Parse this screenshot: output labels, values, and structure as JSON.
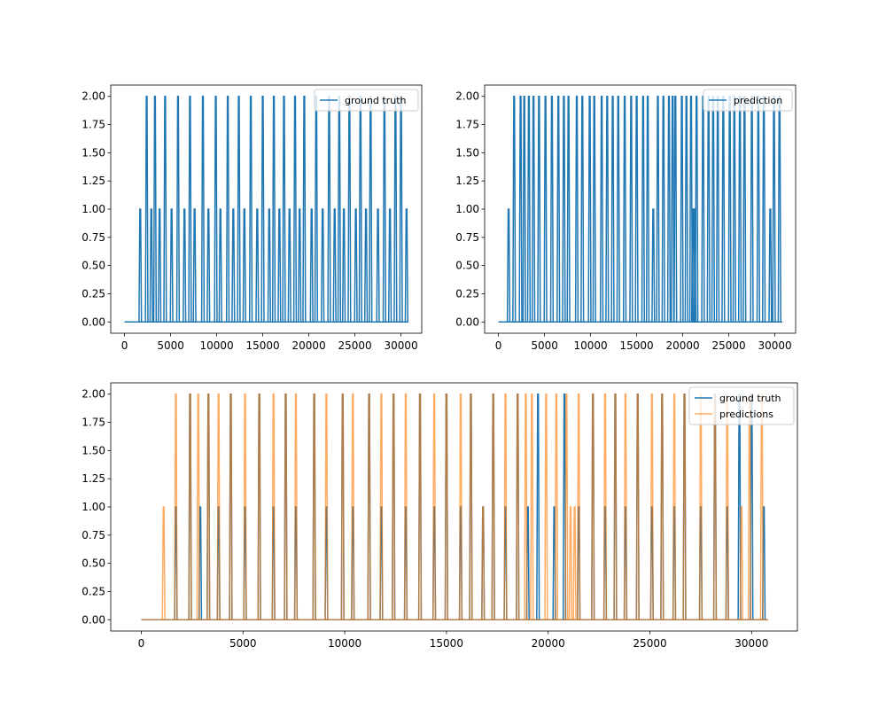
{
  "chart_data": [
    {
      "type": "line",
      "title": "",
      "xlabel": "",
      "ylabel": "",
      "xlim": [
        -1500,
        32250
      ],
      "ylim": [
        -0.1,
        2.1
      ],
      "xticks": [
        0,
        5000,
        10000,
        15000,
        20000,
        25000,
        30000
      ],
      "yticks": [
        0.0,
        0.25,
        0.5,
        0.75,
        1.0,
        1.25,
        1.5,
        1.75,
        2.0
      ],
      "grid": false,
      "legend": "top-right",
      "x_range": [
        0,
        30800
      ],
      "series": [
        {
          "name": "ground truth",
          "color": "#1f77b4",
          "opacity": 1,
          "spikes": [
            [
              1700,
              1
            ],
            [
              2400,
              2
            ],
            [
              2900,
              1
            ],
            [
              3300,
              2
            ],
            [
              3800,
              1
            ],
            [
              4400,
              2
            ],
            [
              5100,
              1
            ],
            [
              5800,
              2
            ],
            [
              6500,
              1
            ],
            [
              7100,
              2
            ],
            [
              7600,
              1
            ],
            [
              8500,
              2
            ],
            [
              9100,
              1
            ],
            [
              9900,
              2
            ],
            [
              10400,
              1
            ],
            [
              11200,
              2
            ],
            [
              11800,
              1
            ],
            [
              12400,
              2
            ],
            [
              13000,
              1
            ],
            [
              13700,
              2
            ],
            [
              14400,
              1
            ],
            [
              15000,
              2
            ],
            [
              15700,
              1
            ],
            [
              16200,
              2
            ],
            [
              16800,
              1
            ],
            [
              17300,
              2
            ],
            [
              17900,
              1
            ],
            [
              18500,
              2
            ],
            [
              19000,
              1
            ],
            [
              19500,
              2
            ],
            [
              20300,
              1
            ],
            [
              20800,
              2
            ],
            [
              21500,
              1
            ],
            [
              22200,
              2
            ],
            [
              22800,
              1
            ],
            [
              23300,
              2
            ],
            [
              23800,
              1
            ],
            [
              24400,
              2
            ],
            [
              25100,
              1
            ],
            [
              25600,
              2
            ],
            [
              26200,
              1
            ],
            [
              26700,
              2
            ],
            [
              27500,
              1
            ],
            [
              28200,
              2
            ],
            [
              28800,
              1
            ],
            [
              29400,
              2
            ],
            [
              30000,
              2
            ],
            [
              30600,
              1
            ]
          ]
        }
      ]
    },
    {
      "type": "line",
      "title": "",
      "xlabel": "",
      "ylabel": "",
      "xlim": [
        -1500,
        32250
      ],
      "ylim": [
        -0.1,
        2.1
      ],
      "xticks": [
        0,
        5000,
        10000,
        15000,
        20000,
        25000,
        30000
      ],
      "yticks": [
        0.0,
        0.25,
        0.5,
        0.75,
        1.0,
        1.25,
        1.5,
        1.75,
        2.0
      ],
      "grid": false,
      "legend": "top-right",
      "x_range": [
        0,
        30800
      ],
      "series": [
        {
          "name": "prediction",
          "color": "#1f77b4",
          "opacity": 1,
          "spikes": [
            [
              1100,
              1
            ],
            [
              1700,
              2
            ],
            [
              2400,
              2
            ],
            [
              2800,
              2
            ],
            [
              3300,
              2
            ],
            [
              3800,
              2
            ],
            [
              4400,
              2
            ],
            [
              5100,
              2
            ],
            [
              5800,
              2
            ],
            [
              6500,
              2
            ],
            [
              7100,
              2
            ],
            [
              7600,
              2
            ],
            [
              8500,
              2
            ],
            [
              9100,
              2
            ],
            [
              9900,
              2
            ],
            [
              10400,
              2
            ],
            [
              11200,
              2
            ],
            [
              11800,
              2
            ],
            [
              12400,
              2
            ],
            [
              13000,
              2
            ],
            [
              13700,
              2
            ],
            [
              14400,
              2
            ],
            [
              15000,
              2
            ],
            [
              15700,
              2
            ],
            [
              16200,
              2
            ],
            [
              16800,
              1
            ],
            [
              17300,
              2
            ],
            [
              17900,
              2
            ],
            [
              18500,
              2
            ],
            [
              18900,
              2
            ],
            [
              19200,
              2
            ],
            [
              19900,
              2
            ],
            [
              20400,
              2
            ],
            [
              20900,
              2
            ],
            [
              21100,
              1
            ],
            [
              21300,
              1
            ],
            [
              21500,
              2
            ],
            [
              22200,
              2
            ],
            [
              22800,
              2
            ],
            [
              23300,
              2
            ],
            [
              23800,
              2
            ],
            [
              24400,
              2
            ],
            [
              25100,
              2
            ],
            [
              25600,
              2
            ],
            [
              26200,
              2
            ],
            [
              26700,
              2
            ],
            [
              27500,
              2
            ],
            [
              28200,
              2
            ],
            [
              28800,
              2
            ],
            [
              29500,
              1
            ],
            [
              29900,
              2
            ],
            [
              30500,
              2
            ]
          ]
        }
      ]
    },
    {
      "type": "line",
      "title": "",
      "xlabel": "",
      "ylabel": "",
      "xlim": [
        -1500,
        32250
      ],
      "ylim": [
        -0.1,
        2.1
      ],
      "xticks": [
        0,
        5000,
        10000,
        15000,
        20000,
        25000,
        30000
      ],
      "yticks": [
        0.0,
        0.25,
        0.5,
        0.75,
        1.0,
        1.25,
        1.5,
        1.75,
        2.0
      ],
      "grid": false,
      "legend": "top-right",
      "x_range": [
        0,
        30800
      ],
      "series": [
        {
          "name": "ground truth",
          "color": "#1f77b4",
          "opacity": 1,
          "spikes": [
            [
              1700,
              1
            ],
            [
              2400,
              2
            ],
            [
              2900,
              1
            ],
            [
              3300,
              2
            ],
            [
              3800,
              1
            ],
            [
              4400,
              2
            ],
            [
              5100,
              1
            ],
            [
              5800,
              2
            ],
            [
              6500,
              1
            ],
            [
              7100,
              2
            ],
            [
              7600,
              1
            ],
            [
              8500,
              2
            ],
            [
              9100,
              1
            ],
            [
              9900,
              2
            ],
            [
              10400,
              1
            ],
            [
              11200,
              2
            ],
            [
              11800,
              1
            ],
            [
              12400,
              2
            ],
            [
              13000,
              1
            ],
            [
              13700,
              2
            ],
            [
              14400,
              1
            ],
            [
              15000,
              2
            ],
            [
              15700,
              1
            ],
            [
              16200,
              2
            ],
            [
              16800,
              1
            ],
            [
              17300,
              2
            ],
            [
              17900,
              1
            ],
            [
              18500,
              2
            ],
            [
              19000,
              1
            ],
            [
              19500,
              2
            ],
            [
              20300,
              1
            ],
            [
              20800,
              2
            ],
            [
              21500,
              1
            ],
            [
              22200,
              2
            ],
            [
              22800,
              1
            ],
            [
              23300,
              2
            ],
            [
              23800,
              1
            ],
            [
              24400,
              2
            ],
            [
              25100,
              1
            ],
            [
              25600,
              2
            ],
            [
              26200,
              1
            ],
            [
              26700,
              2
            ],
            [
              27500,
              1
            ],
            [
              28200,
              2
            ],
            [
              28800,
              1
            ],
            [
              29400,
              2
            ],
            [
              30000,
              2
            ],
            [
              30600,
              1
            ]
          ]
        },
        {
          "name": "predictions",
          "color": "#ff7f0e",
          "opacity": 0.65,
          "spikes": [
            [
              1100,
              1
            ],
            [
              1700,
              2
            ],
            [
              2400,
              2
            ],
            [
              2800,
              2
            ],
            [
              3300,
              2
            ],
            [
              3800,
              2
            ],
            [
              4400,
              2
            ],
            [
              5100,
              2
            ],
            [
              5800,
              2
            ],
            [
              6500,
              2
            ],
            [
              7100,
              2
            ],
            [
              7600,
              2
            ],
            [
              8500,
              2
            ],
            [
              9100,
              2
            ],
            [
              9900,
              2
            ],
            [
              10400,
              2
            ],
            [
              11200,
              2
            ],
            [
              11800,
              2
            ],
            [
              12400,
              2
            ],
            [
              13000,
              2
            ],
            [
              13700,
              2
            ],
            [
              14400,
              2
            ],
            [
              15000,
              2
            ],
            [
              15700,
              2
            ],
            [
              16200,
              2
            ],
            [
              16800,
              1
            ],
            [
              17300,
              2
            ],
            [
              17900,
              2
            ],
            [
              18500,
              2
            ],
            [
              18900,
              2
            ],
            [
              19200,
              2
            ],
            [
              19900,
              2
            ],
            [
              20400,
              2
            ],
            [
              20900,
              2
            ],
            [
              21100,
              1
            ],
            [
              21300,
              1
            ],
            [
              21500,
              2
            ],
            [
              22200,
              2
            ],
            [
              22800,
              2
            ],
            [
              23300,
              2
            ],
            [
              23800,
              2
            ],
            [
              24400,
              2
            ],
            [
              25100,
              2
            ],
            [
              25600,
              2
            ],
            [
              26200,
              2
            ],
            [
              26700,
              2
            ],
            [
              27500,
              2
            ],
            [
              28200,
              2
            ],
            [
              28800,
              2
            ],
            [
              29500,
              1
            ],
            [
              29900,
              2
            ],
            [
              30500,
              2
            ]
          ]
        }
      ]
    }
  ]
}
